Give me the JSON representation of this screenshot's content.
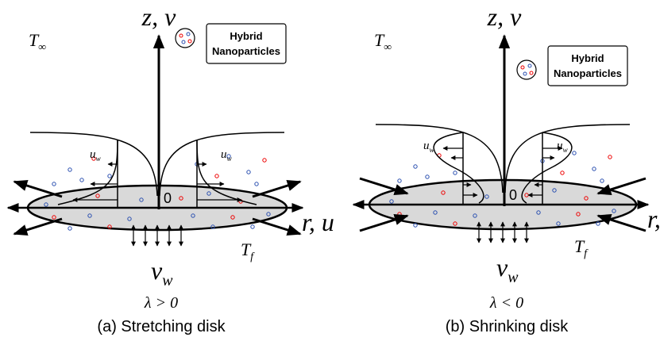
{
  "panels": [
    {
      "z_label": "z, v",
      "ambient": {
        "base": "T",
        "sub": "∞"
      },
      "legend": [
        "Hybrid",
        "Nanoparticles"
      ],
      "u_left": {
        "base": "u",
        "sub": "w"
      },
      "u_right": {
        "base": "u",
        "sub": "w"
      },
      "origin": "0",
      "r_label": "r, u",
      "surface_temp": {
        "base": "T",
        "sub": "f"
      },
      "suction": {
        "base": "v",
        "sub": "w"
      },
      "condition": "λ > 0",
      "caption": "(a) Stretching disk"
    },
    {
      "z_label": "z, v",
      "ambient": {
        "base": "T",
        "sub": "∞"
      },
      "legend": [
        "Hybrid",
        "Nanoparticles"
      ],
      "u_left": {
        "base": "u",
        "sub": "w"
      },
      "u_right": {
        "base": "u",
        "sub": "w"
      },
      "origin": "0",
      "r_label": "r, u",
      "surface_temp": {
        "base": "T",
        "sub": "f"
      },
      "suction": {
        "base": "v",
        "sub": "w"
      },
      "condition": "λ < 0",
      "caption": "(b) Shrinking disk"
    }
  ]
}
